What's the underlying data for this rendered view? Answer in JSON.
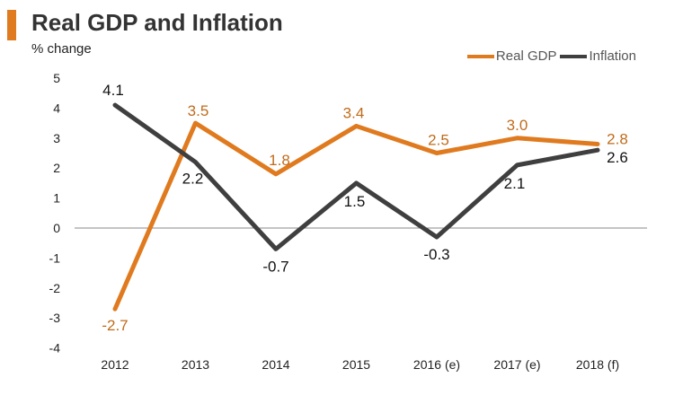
{
  "chart_data": {
    "type": "line",
    "title": "Real GDP and Inflation",
    "ylabel": "% change",
    "xlabel": "",
    "categories": [
      "2012",
      "2013",
      "2014",
      "2015",
      "2016 (e)",
      "2017 (e)",
      "2018 (f)"
    ],
    "yticks": [
      "5",
      "4",
      "3",
      "2",
      "1",
      "0",
      "-1",
      "-2",
      "-3",
      "-4"
    ],
    "ylim": [
      -4,
      5
    ],
    "grid": false,
    "legend_position": "top-right",
    "series": [
      {
        "name": "Real GDP",
        "color": "#E07A1F",
        "values": [
          -2.7,
          3.5,
          1.8,
          3.4,
          2.5,
          3.0,
          2.8
        ],
        "labels": [
          "-2.7",
          "3.5",
          "1.8",
          "3.4",
          "2.5",
          "3.0",
          "2.8"
        ]
      },
      {
        "name": "Inflation",
        "color": "#3F3F3F",
        "values": [
          4.1,
          2.2,
          -0.7,
          1.5,
          -0.3,
          2.1,
          2.6
        ],
        "labels": [
          "4.1",
          "2.2",
          "-0.7",
          "1.5",
          "-0.3",
          "2.1",
          "2.6"
        ]
      }
    ]
  },
  "colors": {
    "accent": "#E07A1F"
  }
}
